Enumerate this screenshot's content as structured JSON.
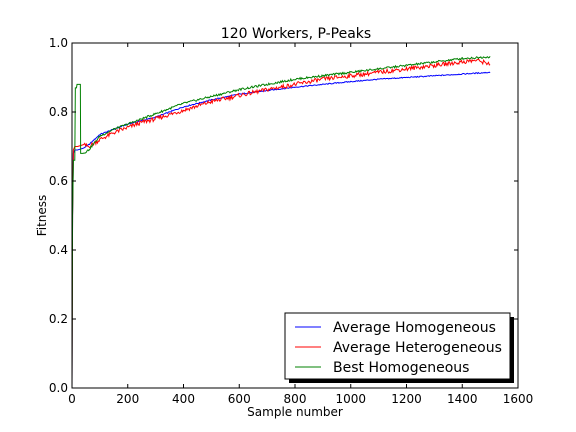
{
  "chart_data": {
    "type": "line",
    "title": "120 Workers, P-Peaks",
    "xlabel": "Sample number",
    "ylabel": "Fitness",
    "xlim": [
      0,
      1600
    ],
    "ylim": [
      0.0,
      1.0
    ],
    "xticks": [
      "0",
      "200",
      "400",
      "600",
      "800",
      "1000",
      "1200",
      "1400",
      "1600"
    ],
    "yticks": [
      "0.0",
      "0.2",
      "0.4",
      "0.6",
      "0.8",
      "1.0"
    ],
    "grid": false,
    "legend_position": "lower-right",
    "series": [
      {
        "name": "Average Homogeneous",
        "color": "#0000ff",
        "x": [
          0,
          2,
          5,
          10,
          20,
          40,
          60,
          80,
          100,
          150,
          200,
          250,
          300,
          400,
          500,
          600,
          700,
          800,
          900,
          1000,
          1100,
          1200,
          1300,
          1400,
          1500
        ],
        "y": [
          0.0,
          0.5,
          0.68,
          0.69,
          0.69,
          0.695,
          0.705,
          0.72,
          0.735,
          0.75,
          0.765,
          0.775,
          0.785,
          0.815,
          0.835,
          0.852,
          0.862,
          0.872,
          0.88,
          0.888,
          0.895,
          0.9,
          0.905,
          0.91,
          0.915
        ]
      },
      {
        "name": "Average Heterogeneous",
        "color": "#ff0000",
        "x": [
          0,
          2,
          5,
          10,
          20,
          40,
          60,
          80,
          100,
          150,
          200,
          250,
          300,
          400,
          500,
          600,
          700,
          800,
          900,
          1000,
          1100,
          1200,
          1300,
          1400,
          1450,
          1500
        ],
        "y": [
          0.0,
          0.5,
          0.69,
          0.7,
          0.7,
          0.705,
          0.7,
          0.71,
          0.72,
          0.74,
          0.755,
          0.77,
          0.78,
          0.805,
          0.83,
          0.848,
          0.865,
          0.88,
          0.895,
          0.905,
          0.915,
          0.925,
          0.935,
          0.945,
          0.95,
          0.94
        ]
      },
      {
        "name": "Best Homogeneous",
        "color": "#008000",
        "x": [
          0,
          2,
          5,
          10,
          12,
          16,
          18,
          20,
          22,
          25,
          30,
          31,
          40,
          60,
          80,
          100,
          150,
          200,
          250,
          300,
          400,
          500,
          600,
          700,
          800,
          900,
          1000,
          1100,
          1200,
          1300,
          1400,
          1500
        ],
        "y": [
          0.0,
          0.5,
          0.66,
          0.66,
          0.87,
          0.87,
          0.88,
          0.88,
          0.88,
          0.88,
          0.88,
          0.68,
          0.68,
          0.69,
          0.71,
          0.73,
          0.75,
          0.765,
          0.78,
          0.795,
          0.825,
          0.845,
          0.865,
          0.88,
          0.895,
          0.905,
          0.915,
          0.925,
          0.935,
          0.945,
          0.955,
          0.96
        ]
      }
    ]
  }
}
